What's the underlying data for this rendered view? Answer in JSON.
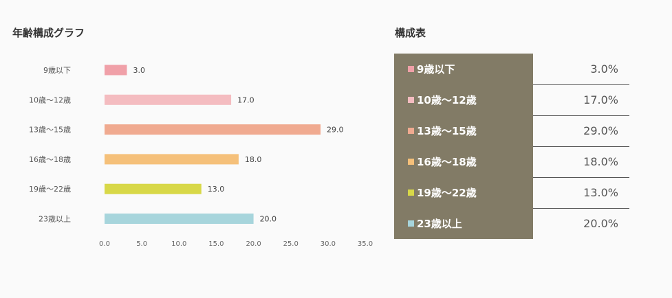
{
  "chart_title": "年齢構成グラフ",
  "table_title": "構成表",
  "chart_data": {
    "type": "bar",
    "orientation": "horizontal",
    "categories": [
      "9歳以下",
      "10歳～12歳",
      "13歳～15歳",
      "16歳～18歳",
      "19歳～22歳",
      "23歳以上"
    ],
    "values": [
      3.0,
      17.0,
      29.0,
      18.0,
      13.0,
      20.0
    ],
    "value_labels": [
      "3.0",
      "17.0",
      "29.0",
      "18.0",
      "13.0",
      "20.0"
    ],
    "colors": [
      "#f0a0a8",
      "#f4bcc0",
      "#f0aa90",
      "#f5c07a",
      "#d8d848",
      "#a7d5dc"
    ],
    "xlim": [
      0,
      35
    ],
    "xticks": [
      "0.0",
      "5.0",
      "10.0",
      "15.0",
      "20.0",
      "25.0",
      "30.0",
      "35.0"
    ],
    "title": "",
    "xlabel": "",
    "ylabel": "",
    "grid": false,
    "legend": false
  },
  "table": {
    "rows": [
      {
        "label": "9歳以下",
        "value": "3.0%",
        "color": "#f0a0a8"
      },
      {
        "label": "10歳～12歳",
        "value": "17.0%",
        "color": "#f4bcc0"
      },
      {
        "label": "13歳～15歳",
        "value": "29.0%",
        "color": "#f0aa90"
      },
      {
        "label": "16歳～18歳",
        "value": "18.0%",
        "color": "#f5c07a"
      },
      {
        "label": "19歳～22歳",
        "value": "13.0%",
        "color": "#d8d848"
      },
      {
        "label": "23歳以上",
        "value": "20.0%",
        "color": "#a7d5dc"
      }
    ]
  }
}
